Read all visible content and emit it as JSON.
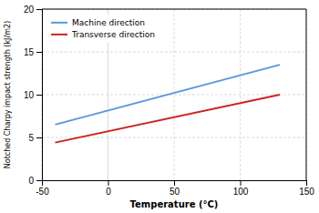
{
  "chart_data": {
    "type": "line",
    "xlabel": "Temperature (°C)",
    "ylabel": "Notched Charpy impact strength  (kJ/m2)",
    "x": [
      -40,
      130
    ],
    "series": [
      {
        "name": "Machine direction",
        "color": "#5599dd",
        "values": [
          6.5,
          13.5
        ]
      },
      {
        "name": "Transverse direction",
        "color": "#cc2222",
        "values": [
          4.4,
          10.0
        ]
      }
    ],
    "xlim": [
      -50,
      150
    ],
    "ylim": [
      0,
      20
    ],
    "xticks": [
      -50,
      0,
      50,
      100,
      150
    ],
    "yticks": [
      0,
      5,
      10,
      15,
      20
    ],
    "grid": true,
    "legend": "upper left"
  }
}
